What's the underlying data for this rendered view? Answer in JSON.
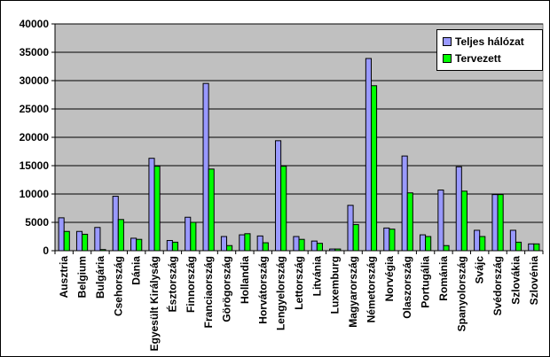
{
  "chart_data": {
    "type": "bar",
    "title": "",
    "xlabel": "",
    "ylabel": "",
    "ylim": [
      0,
      40000
    ],
    "yticks": [
      "0",
      "5000",
      "10000",
      "15000",
      "20000",
      "25000",
      "30000",
      "35000",
      "40000"
    ],
    "grid": true,
    "legend_position": "top-right",
    "categories": [
      "Ausztria",
      "Belgium",
      "Bulgária",
      "Csehország",
      "Dánia",
      "Egyesült Királyság",
      "Észtország",
      "Finnország",
      "Franciaország",
      "Görögország",
      "Hollandia",
      "Horvátország",
      "Lengyelország",
      "Lettország",
      "Litvánia",
      "Luxemburg",
      "Magyarország",
      "Németország",
      "Norvégia",
      "Olaszország",
      "Portugália",
      "Románia",
      "Spanyolország",
      "Svájc",
      "Svédország",
      "Szlovákia",
      "Szlovénia"
    ],
    "series": [
      {
        "name": "Teljes hálózat",
        "color": "#9999ff",
        "values": [
          5800,
          3400,
          4100,
          9600,
          2200,
          16300,
          1800,
          5900,
          29500,
          2500,
          2800,
          2600,
          19400,
          2500,
          1700,
          300,
          8000,
          33900,
          4000,
          16700,
          2800,
          10700,
          14800,
          3600,
          9900,
          3600,
          1200
        ]
      },
      {
        "name": "Tervezett",
        "color": "#00ff00",
        "values": [
          3400,
          2900,
          200,
          5500,
          2000,
          14900,
          1500,
          5000,
          14400,
          900,
          3000,
          1400,
          14900,
          2000,
          1300,
          300,
          4600,
          29100,
          3800,
          10200,
          2500,
          900,
          10500,
          2500,
          9900,
          1500,
          1200
        ]
      }
    ]
  }
}
